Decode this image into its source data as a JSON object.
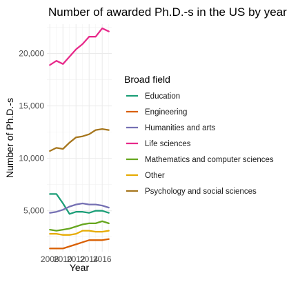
{
  "chart_data": {
    "type": "line",
    "title": "Number of awarded Ph.D.-s in the US by year",
    "xlabel": "Year",
    "ylabel": "Number of Ph.D.-s",
    "x": [
      2008,
      2009,
      2010,
      2011,
      2012,
      2013,
      2014,
      2015,
      2016,
      2017
    ],
    "xticks": [
      2008,
      2010,
      2012,
      2014,
      2016
    ],
    "xtick_labels": [
      "2008",
      "2010",
      "2012",
      "2014",
      "2016"
    ],
    "xlim": [
      2008,
      2017
    ],
    "yticks": [
      5000,
      10000,
      15000,
      20000
    ],
    "ytick_labels": [
      "5,000",
      "10,000",
      "15,000",
      "20,000"
    ],
    "ylim": [
      1100,
      22800
    ],
    "grid": true,
    "legend": {
      "title": "Broad field",
      "position": "right"
    },
    "series": [
      {
        "name": "Education",
        "color": "#1b9e77",
        "values": [
          6600,
          6600,
          5700,
          4700,
          4900,
          4900,
          4800,
          5000,
          5000,
          4800
        ]
      },
      {
        "name": "Engineering",
        "color": "#d95f02",
        "values": [
          1400,
          1400,
          1400,
          1600,
          1800,
          2000,
          2200,
          2200,
          2200,
          2300
        ]
      },
      {
        "name": "Humanities and arts",
        "color": "#7570b3",
        "values": [
          4800,
          4900,
          5100,
          5400,
          5600,
          5700,
          5600,
          5600,
          5500,
          5300
        ]
      },
      {
        "name": "Life sciences",
        "color": "#e7298a",
        "values": [
          18900,
          19300,
          19000,
          19700,
          20400,
          20900,
          21600,
          21600,
          22400,
          22100
        ]
      },
      {
        "name": "Mathematics and computer sciences",
        "color": "#66a61e",
        "values": [
          3200,
          3100,
          3200,
          3300,
          3500,
          3700,
          3800,
          3800,
          4000,
          3800
        ]
      },
      {
        "name": "Other",
        "color": "#e6ab02",
        "values": [
          2800,
          2800,
          2700,
          2700,
          2800,
          3100,
          3100,
          3000,
          3000,
          3100
        ]
      },
      {
        "name": "Psychology and social sciences",
        "color": "#a6761d",
        "values": [
          10700,
          11000,
          10900,
          11500,
          12000,
          12100,
          12300,
          12700,
          12800,
          12700
        ]
      }
    ]
  }
}
